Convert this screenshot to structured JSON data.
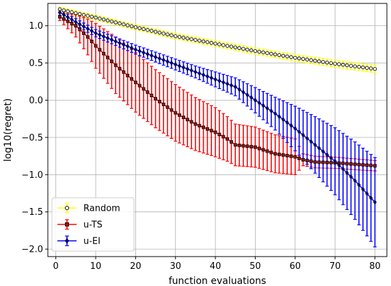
{
  "chart_data": {
    "type": "line",
    "title": "",
    "xlabel": "function evaluations",
    "ylabel": "log10(regret)",
    "xlim": [
      -2,
      83
    ],
    "ylim": [
      -2.1,
      1.3
    ],
    "xticks": [
      0,
      10,
      20,
      30,
      40,
      50,
      60,
      70,
      80
    ],
    "yticks": [
      -2.0,
      -1.5,
      -1.0,
      -0.5,
      0.0,
      0.5,
      1.0
    ],
    "ytick_labels": [
      "−2.0",
      "−1.5",
      "−1.0",
      "−0.5",
      "0.0",
      "0.5",
      "1.0"
    ],
    "grid": true,
    "legend_position": "lower-left",
    "x_range": [
      1,
      80
    ],
    "series": [
      {
        "name": "Random",
        "color": "#ffff00",
        "marker": "circle-open",
        "mean_knots": [
          [
            1,
            1.22
          ],
          [
            5,
            1.17
          ],
          [
            10,
            1.11
          ],
          [
            20,
            0.98
          ],
          [
            30,
            0.86
          ],
          [
            40,
            0.76
          ],
          [
            50,
            0.66
          ],
          [
            60,
            0.57
          ],
          [
            70,
            0.49
          ],
          [
            80,
            0.42
          ]
        ],
        "err_knots": [
          [
            1,
            0.03
          ],
          [
            40,
            0.04
          ],
          [
            80,
            0.05
          ]
        ]
      },
      {
        "name": "u-TS",
        "color": "#ff0000",
        "marker": "square",
        "mean_knots": [
          [
            1,
            1.12
          ],
          [
            5,
            1.0
          ],
          [
            8,
            0.85
          ],
          [
            10,
            0.73
          ],
          [
            15,
            0.47
          ],
          [
            20,
            0.24
          ],
          [
            25,
            0.02
          ],
          [
            30,
            -0.17
          ],
          [
            35,
            -0.32
          ],
          [
            40,
            -0.43
          ],
          [
            43,
            -0.52
          ],
          [
            45,
            -0.6
          ],
          [
            50,
            -0.63
          ],
          [
            55,
            -0.72
          ],
          [
            60,
            -0.76
          ],
          [
            62,
            -0.8
          ],
          [
            65,
            -0.83
          ],
          [
            70,
            -0.84
          ],
          [
            75,
            -0.86
          ],
          [
            80,
            -0.88
          ]
        ],
        "err_knots": [
          [
            1,
            0.05
          ],
          [
            5,
            0.15
          ],
          [
            10,
            0.3
          ],
          [
            15,
            0.38
          ],
          [
            20,
            0.4
          ],
          [
            30,
            0.38
          ],
          [
            40,
            0.33
          ],
          [
            45,
            0.28
          ],
          [
            50,
            0.27
          ],
          [
            60,
            0.24
          ],
          [
            62,
            0.08
          ],
          [
            80,
            0.07
          ]
        ]
      },
      {
        "name": "u-EI",
        "color": "#0000ff",
        "marker": "diamond",
        "mean_knots": [
          [
            1,
            1.18
          ],
          [
            5,
            1.05
          ],
          [
            10,
            0.9
          ],
          [
            20,
            0.68
          ],
          [
            30,
            0.48
          ],
          [
            40,
            0.28
          ],
          [
            45,
            0.18
          ],
          [
            50,
            0.0
          ],
          [
            55,
            -0.18
          ],
          [
            60,
            -0.38
          ],
          [
            65,
            -0.6
          ],
          [
            70,
            -0.82
          ],
          [
            75,
            -1.08
          ],
          [
            80,
            -1.37
          ]
        ],
        "err_knots": [
          [
            1,
            0.04
          ],
          [
            20,
            0.06
          ],
          [
            35,
            0.08
          ],
          [
            45,
            0.12
          ],
          [
            50,
            0.17
          ],
          [
            55,
            0.22
          ],
          [
            60,
            0.3
          ],
          [
            65,
            0.38
          ],
          [
            70,
            0.45
          ],
          [
            75,
            0.52
          ],
          [
            80,
            0.6
          ]
        ]
      }
    ]
  }
}
